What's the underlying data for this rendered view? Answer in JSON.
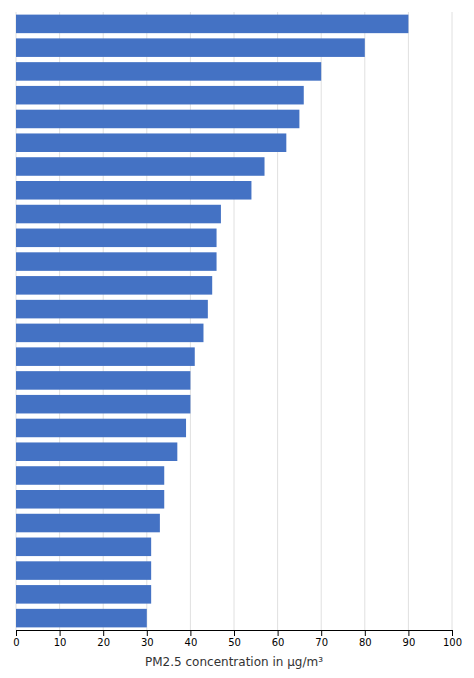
{
  "chart_data": {
    "type": "bar",
    "orientation": "horizontal",
    "categories": [
      null,
      null,
      null,
      null,
      null,
      null,
      null,
      null,
      null,
      null,
      null,
      null,
      null,
      null,
      null,
      null,
      null,
      null,
      null,
      null,
      null,
      null,
      null,
      null,
      null,
      null
    ],
    "values": [
      90,
      80,
      70,
      66,
      65,
      62,
      57,
      54,
      47,
      46,
      46,
      45,
      44,
      43,
      41,
      40,
      40,
      39,
      37,
      34,
      34,
      33,
      31,
      31,
      31,
      30
    ],
    "color": "#4472c4",
    "xlabel": "PM2.5 concentration in μg/m³",
    "xlim": [
      0,
      100
    ],
    "xticks": [
      0,
      10,
      20,
      30,
      40,
      50,
      60,
      70,
      80,
      90,
      100
    ],
    "grid": true,
    "tick_labels": "x"
  }
}
